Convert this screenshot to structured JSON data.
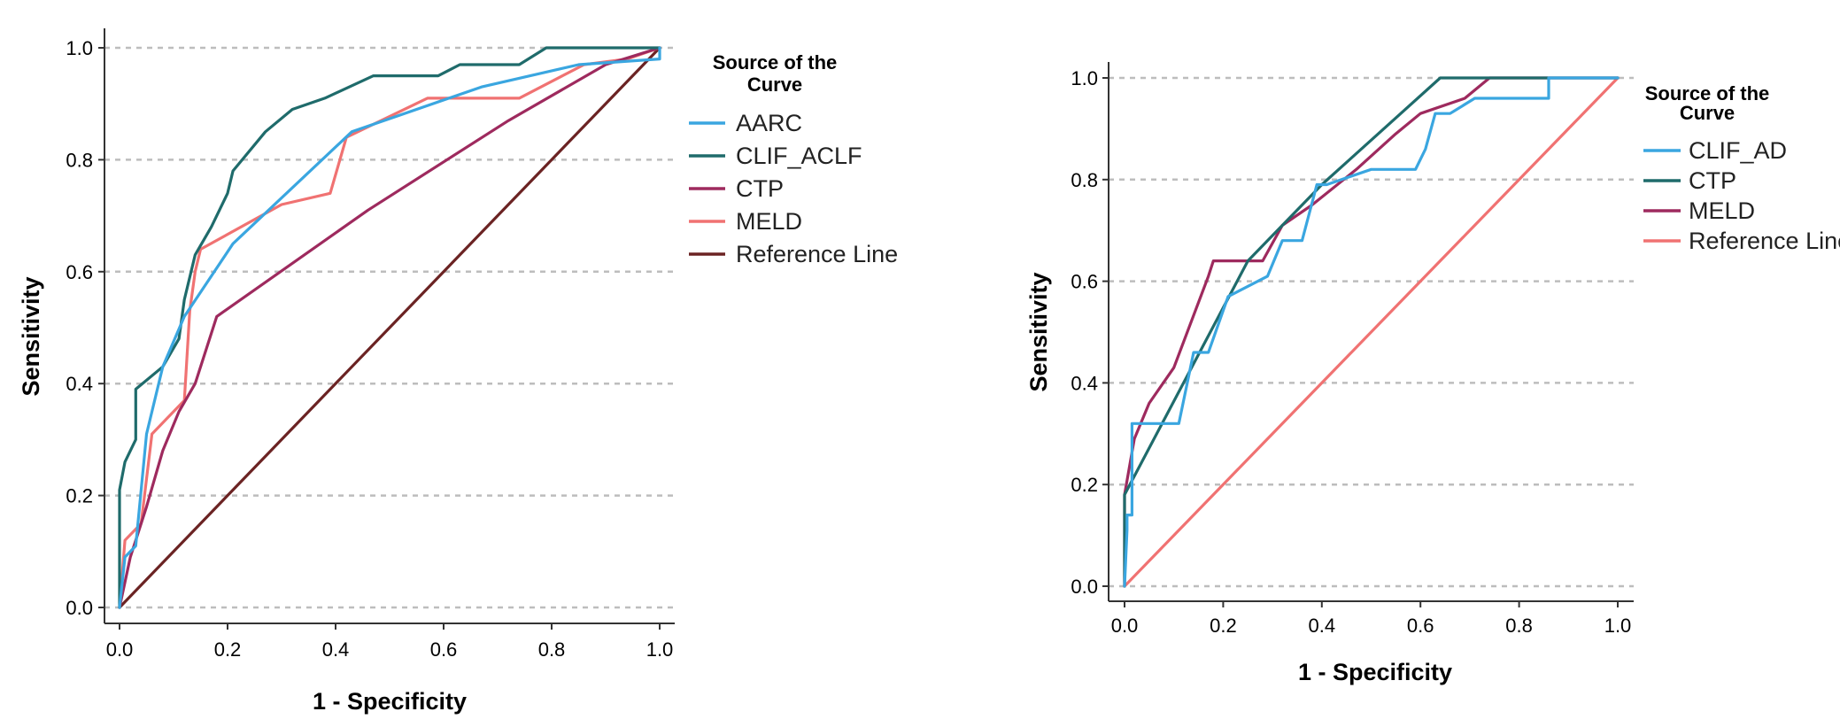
{
  "chart_data": [
    {
      "type": "line",
      "xlabel": "1 - Specificity",
      "ylabel": "Sensitivity",
      "xlim": [
        0,
        1
      ],
      "ylim": [
        0,
        1
      ],
      "xticks": [
        "0.0",
        "0.2",
        "0.4",
        "0.6",
        "0.8",
        "1.0"
      ],
      "yticks": [
        "0.0",
        "0.2",
        "0.4",
        "0.6",
        "0.8",
        "1.0"
      ],
      "grid": "horizontal dashed",
      "legend": {
        "title_line1": "Source of the",
        "title_line2": "Curve",
        "placement": "right"
      },
      "series": [
        {
          "name": "AARC",
          "color": "#3aa6e0",
          "x": [
            0,
            0.01,
            0.03,
            0.05,
            0.08,
            0.12,
            0.21,
            0.43,
            0.67,
            0.85,
            1.0,
            1.0
          ],
          "y": [
            0,
            0.09,
            0.11,
            0.31,
            0.43,
            0.52,
            0.65,
            0.85,
            0.93,
            0.97,
            0.98,
            1.0
          ]
        },
        {
          "name": "CLIF_ACLF",
          "color": "#1f6b6b",
          "x": [
            0,
            0,
            0.01,
            0.03,
            0.03,
            0.08,
            0.11,
            0.12,
            0.14,
            0.17,
            0.2,
            0.21,
            0.27,
            0.32,
            0.38,
            0.47,
            0.59,
            0.63,
            0.74,
            0.79,
            0.98,
            1.0
          ],
          "y": [
            0,
            0.21,
            0.26,
            0.3,
            0.39,
            0.43,
            0.48,
            0.55,
            0.63,
            0.68,
            0.74,
            0.78,
            0.85,
            0.89,
            0.91,
            0.95,
            0.95,
            0.97,
            0.97,
            1.0,
            1.0,
            1.0
          ],
          "line_style": "step-like"
        },
        {
          "name": "CTP",
          "color": "#9e2a5e",
          "x": [
            0,
            0.02,
            0.05,
            0.08,
            0.11,
            0.14,
            0.18,
            0.46,
            0.72,
            0.9,
            1.0
          ],
          "y": [
            0,
            0.09,
            0.18,
            0.28,
            0.35,
            0.4,
            0.52,
            0.71,
            0.87,
            0.97,
            1.0
          ]
        },
        {
          "name": "MELD",
          "color": "#f07272",
          "x": [
            0,
            0.01,
            0.04,
            0.06,
            0.1,
            0.12,
            0.13,
            0.14,
            0.15,
            0.3,
            0.39,
            0.42,
            0.57,
            0.74,
            0.86,
            0.94,
            1.0
          ],
          "y": [
            0,
            0.12,
            0.15,
            0.31,
            0.35,
            0.37,
            0.53,
            0.6,
            0.64,
            0.72,
            0.74,
            0.84,
            0.91,
            0.91,
            0.97,
            0.98,
            1.0
          ]
        },
        {
          "name": "Reference Line",
          "color": "#6b2323",
          "x": [
            0,
            1
          ],
          "y": [
            0,
            1
          ]
        }
      ]
    },
    {
      "type": "line",
      "xlabel": "1 - Specificity",
      "ylabel": "Sensitivity",
      "xlim": [
        0,
        1
      ],
      "ylim": [
        0,
        1
      ],
      "xticks": [
        "0.0",
        "0.2",
        "0.4",
        "0.6",
        "0.8",
        "1.0"
      ],
      "yticks": [
        "0.0",
        "0.2",
        "0.4",
        "0.6",
        "0.8",
        "1.0"
      ],
      "grid": "horizontal dashed",
      "legend": {
        "title_line1": "Source of the",
        "title_line2": "Curve",
        "placement": "right"
      },
      "series": [
        {
          "name": "CLIF_AD",
          "color": "#3aa6e0",
          "x": [
            0,
            0.005,
            0.005,
            0.015,
            0.015,
            0.11,
            0.14,
            0.14,
            0.17,
            0.21,
            0.29,
            0.32,
            0.36,
            0.39,
            0.41,
            0.5,
            0.59,
            0.61,
            0.63,
            0.66,
            0.71,
            0.86,
            0.86,
            1.0
          ],
          "y": [
            0,
            0.11,
            0.14,
            0.14,
            0.32,
            0.32,
            0.46,
            0.46,
            0.46,
            0.57,
            0.61,
            0.68,
            0.68,
            0.79,
            0.79,
            0.82,
            0.82,
            0.86,
            0.93,
            0.93,
            0.96,
            0.96,
            1.0,
            1.0
          ],
          "line_style": "step"
        },
        {
          "name": "CTP",
          "color": "#1f6b6b",
          "x": [
            0,
            0.0,
            0.25,
            0.4,
            0.64,
            0.8,
            1.0
          ],
          "y": [
            0,
            0.18,
            0.64,
            0.79,
            1.0,
            1.0,
            1.0
          ]
        },
        {
          "name": "MELD",
          "color": "#9e2a5e",
          "x": [
            0,
            0,
            0.02,
            0.05,
            0.1,
            0.17,
            0.18,
            0.22,
            0.28,
            0.32,
            0.38,
            0.47,
            0.55,
            0.6,
            0.69,
            0.74,
            1.0
          ],
          "y": [
            0,
            0.18,
            0.29,
            0.36,
            0.43,
            0.61,
            0.64,
            0.64,
            0.64,
            0.71,
            0.75,
            0.82,
            0.89,
            0.93,
            0.96,
            1.0,
            1.0
          ]
        },
        {
          "name": "Reference Line",
          "color": "#f07272",
          "x": [
            0,
            1
          ],
          "y": [
            0,
            1
          ]
        }
      ]
    }
  ]
}
